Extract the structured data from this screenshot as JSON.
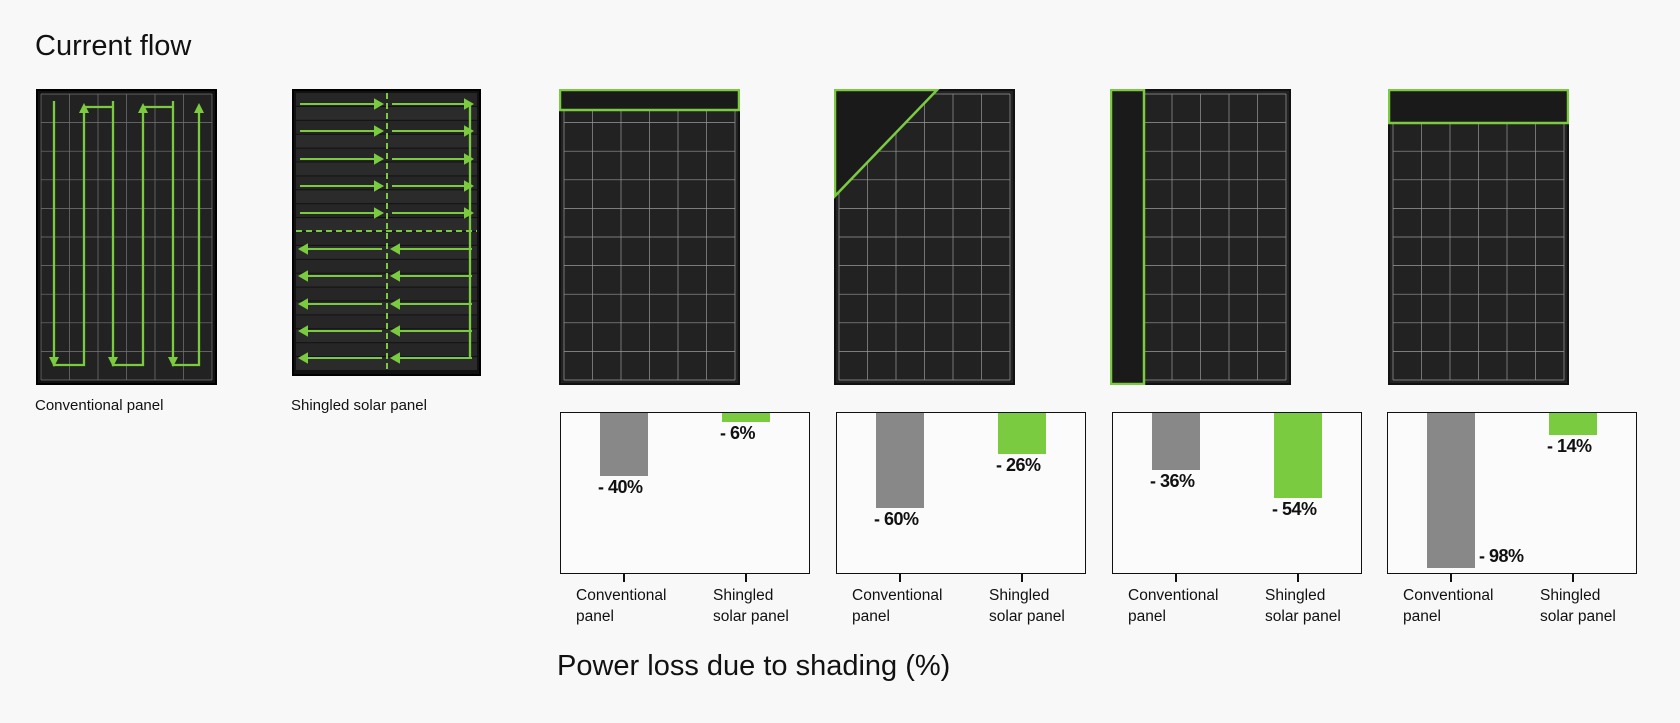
{
  "header": {
    "title": "Current flow"
  },
  "panels": {
    "conventional_label": "Conventional panel",
    "shingled_label": "Shingled solar panel"
  },
  "colors": {
    "accent_green": "#7acb3f",
    "conventional_gray": "#888888",
    "panel_dark": "#222222"
  },
  "chart_data": {
    "type": "bar",
    "title": "Power loss due to shading (%)",
    "categories": [
      "Conventional panel",
      "Shingled solar panel"
    ],
    "charts": [
      {
        "shading": "top edge strip",
        "values": [
          -40,
          -6
        ],
        "labels": [
          "- 40%",
          "- 6%"
        ]
      },
      {
        "shading": "top-left corner triangle",
        "values": [
          -60,
          -26
        ],
        "labels": [
          "- 60%",
          "- 26%"
        ]
      },
      {
        "shading": "left edge column",
        "values": [
          -36,
          -54
        ],
        "labels": [
          "- 36%",
          "- 54%"
        ]
      },
      {
        "shading": "top edge row",
        "values": [
          -98,
          -14
        ],
        "labels": [
          "- 98%",
          "- 14%"
        ]
      }
    ],
    "xlabels": [
      [
        "Conventional",
        "panel"
      ],
      [
        "Shingled",
        "solar panel"
      ]
    ],
    "ylim": [
      -100,
      0
    ]
  }
}
